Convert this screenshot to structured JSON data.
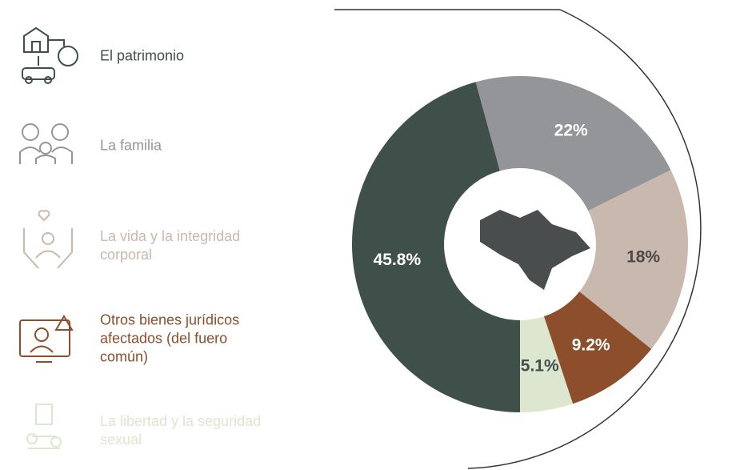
{
  "chart_data": {
    "type": "donut",
    "categories": [
      "El patrimonio",
      "La familia",
      "La vida y la integridad corporal",
      "Otros bienes jurídicos afectados (del fuero común)",
      "La libertad y la seguridad sexual"
    ],
    "values": [
      45.8,
      22,
      18,
      9.2,
      5.1
    ],
    "value_labels": [
      "45.8%",
      "22%",
      "18%",
      "9.2%",
      "5.1%"
    ],
    "colors": [
      "#3f4f4a",
      "#939598",
      "#c9b8ad",
      "#8c4e2b",
      "#dde6cf"
    ],
    "label_colors": [
      "#ffffff",
      "#ffffff",
      "#4a4a4a",
      "#ffffff",
      "#3f4f4a"
    ]
  }
}
